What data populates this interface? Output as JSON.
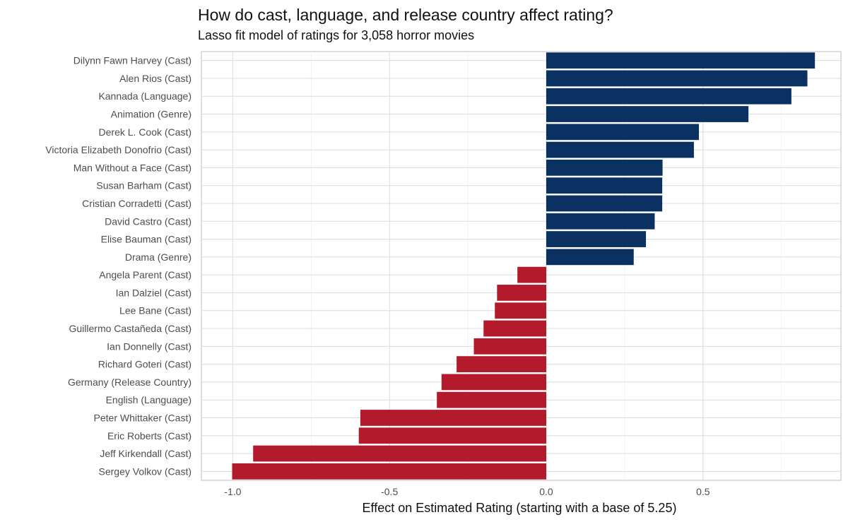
{
  "chart_data": {
    "type": "bar",
    "orientation": "horizontal",
    "title": "How do cast, language, and release country affect rating?",
    "subtitle": "Lasso fit model of ratings for 3,058 horror movies",
    "xlabel": "Effect on Estimated Rating (starting with a base of 5.25)",
    "ylabel": "",
    "xlim": [
      -1.1,
      0.94
    ],
    "xticks": [
      -1.0,
      -0.5,
      0.0,
      0.5
    ],
    "xtick_labels": [
      "-1.0",
      "-0.5",
      "0.0",
      "0.5"
    ],
    "grid": true,
    "categories": [
      "Dilynn Fawn Harvey (Cast)",
      "Alen Rios (Cast)",
      "Kannada (Language)",
      "Animation (Genre)",
      "Derek L. Cook (Cast)",
      "Victoria Elizabeth Donofrio (Cast)",
      "Man Without a Face (Cast)",
      "Susan Barham (Cast)",
      "Cristian Corradetti (Cast)",
      "David Castro (Cast)",
      "Elise Bauman (Cast)",
      "Drama (Genre)",
      "Angela Parent (Cast)",
      "Ian Dalziel (Cast)",
      "Lee Bane (Cast)",
      "Guillermo Castañeda (Cast)",
      "Ian Donnelly (Cast)",
      "Richard Goteri (Cast)",
      "Germany (Release Country)",
      "English (Language)",
      "Peter Whittaker (Cast)",
      "Eric Roberts (Cast)",
      "Jeff Kirkendall (Cast)",
      "Sergey Volkov (Cast)"
    ],
    "values": [
      0.857,
      0.833,
      0.782,
      0.645,
      0.487,
      0.471,
      0.371,
      0.37,
      0.37,
      0.346,
      0.318,
      0.279,
      -0.092,
      -0.157,
      -0.164,
      -0.2,
      -0.231,
      -0.286,
      -0.334,
      -0.349,
      -0.593,
      -0.598,
      -0.935,
      -1.002
    ],
    "colors": {
      "positive": "#0a3161",
      "negative": "#b31b2c"
    }
  }
}
